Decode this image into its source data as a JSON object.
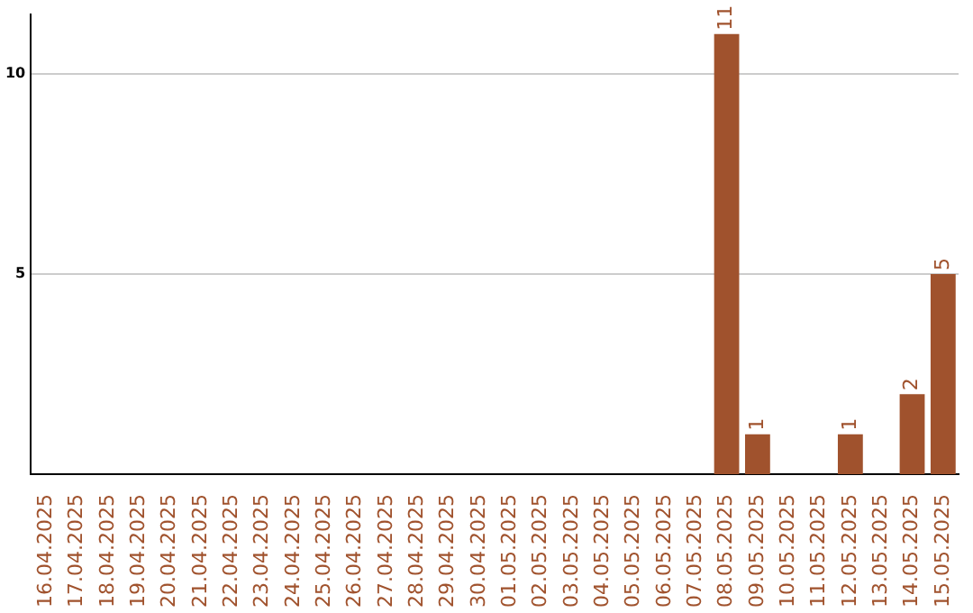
{
  "chart_data": {
    "type": "bar",
    "categories": [
      "16.04.2025",
      "17.04.2025",
      "18.04.2025",
      "19.04.2025",
      "20.04.2025",
      "21.04.2025",
      "22.04.2025",
      "23.04.2025",
      "24.04.2025",
      "25.04.2025",
      "26.04.2025",
      "27.04.2025",
      "28.04.2025",
      "29.04.2025",
      "30.04.2025",
      "01.05.2025",
      "02.05.2025",
      "03.05.2025",
      "04.05.2025",
      "05.05.2025",
      "06.05.2025",
      "07.05.2025",
      "08.05.2025",
      "09.05.2025",
      "10.05.2025",
      "11.05.2025",
      "12.05.2025",
      "13.05.2025",
      "14.05.2025",
      "15.05.2025"
    ],
    "values": [
      0,
      0,
      0,
      0,
      0,
      0,
      0,
      0,
      0,
      0,
      0,
      0,
      0,
      0,
      0,
      0,
      0,
      0,
      0,
      0,
      0,
      0,
      11,
      1,
      0,
      0,
      1,
      0,
      2,
      5
    ],
    "value_labels": [
      null,
      null,
      null,
      null,
      null,
      null,
      null,
      null,
      null,
      null,
      null,
      null,
      null,
      null,
      null,
      null,
      null,
      null,
      null,
      null,
      null,
      null,
      "11",
      "1",
      null,
      null,
      "1",
      null,
      "2",
      "5"
    ],
    "color": "#a0522d",
    "ylim": [
      0,
      11.5
    ],
    "yticks": [
      5,
      10
    ],
    "grid": "y",
    "legend": false
  }
}
